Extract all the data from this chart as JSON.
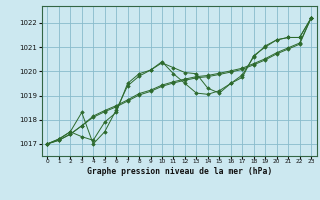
{
  "xlabel": "Graphe pression niveau de la mer (hPa)",
  "background_color": "#cce8f0",
  "grid_color": "#88bbcc",
  "line_color": "#2d6a2d",
  "xlim": [
    -0.5,
    23.5
  ],
  "ylim": [
    1016.5,
    1022.7
  ],
  "yticks": [
    1017,
    1018,
    1019,
    1020,
    1021,
    1022
  ],
  "xticks": [
    0,
    1,
    2,
    3,
    4,
    5,
    6,
    7,
    8,
    9,
    10,
    11,
    12,
    13,
    14,
    15,
    16,
    17,
    18,
    19,
    20,
    21,
    22,
    23
  ],
  "s1": [
    1017.0,
    1017.2,
    1017.5,
    1017.3,
    1017.15,
    1017.9,
    1018.3,
    1019.5,
    1019.9,
    1020.05,
    1020.35,
    1020.15,
    1019.95,
    1019.9,
    1019.3,
    1019.1,
    1019.5,
    1019.75,
    1020.65,
    1021.0,
    1021.3,
    1021.4,
    1021.4,
    1022.2
  ],
  "s2": [
    1017.0,
    1017.15,
    1017.4,
    1017.75,
    1018.15,
    1018.38,
    1018.58,
    1018.82,
    1019.08,
    1019.22,
    1019.43,
    1019.57,
    1019.68,
    1019.78,
    1019.83,
    1019.92,
    1020.02,
    1020.13,
    1020.32,
    1020.52,
    1020.77,
    1020.97,
    1021.17,
    1022.2
  ],
  "s3": [
    1017.0,
    1017.15,
    1017.4,
    1017.75,
    1018.1,
    1018.33,
    1018.53,
    1018.77,
    1019.02,
    1019.17,
    1019.38,
    1019.52,
    1019.63,
    1019.73,
    1019.78,
    1019.87,
    1019.97,
    1020.08,
    1020.27,
    1020.47,
    1020.72,
    1020.92,
    1021.12,
    1022.2
  ],
  "s4": [
    1017.0,
    1017.2,
    1017.5,
    1018.3,
    1017.0,
    1017.5,
    1018.4,
    1019.4,
    1019.8,
    1020.05,
    1020.4,
    1019.9,
    1019.5,
    1019.1,
    1019.05,
    1019.2,
    1019.5,
    1019.85,
    1020.6,
    1021.05,
    1021.3,
    1021.4,
    1021.4,
    1022.2
  ]
}
